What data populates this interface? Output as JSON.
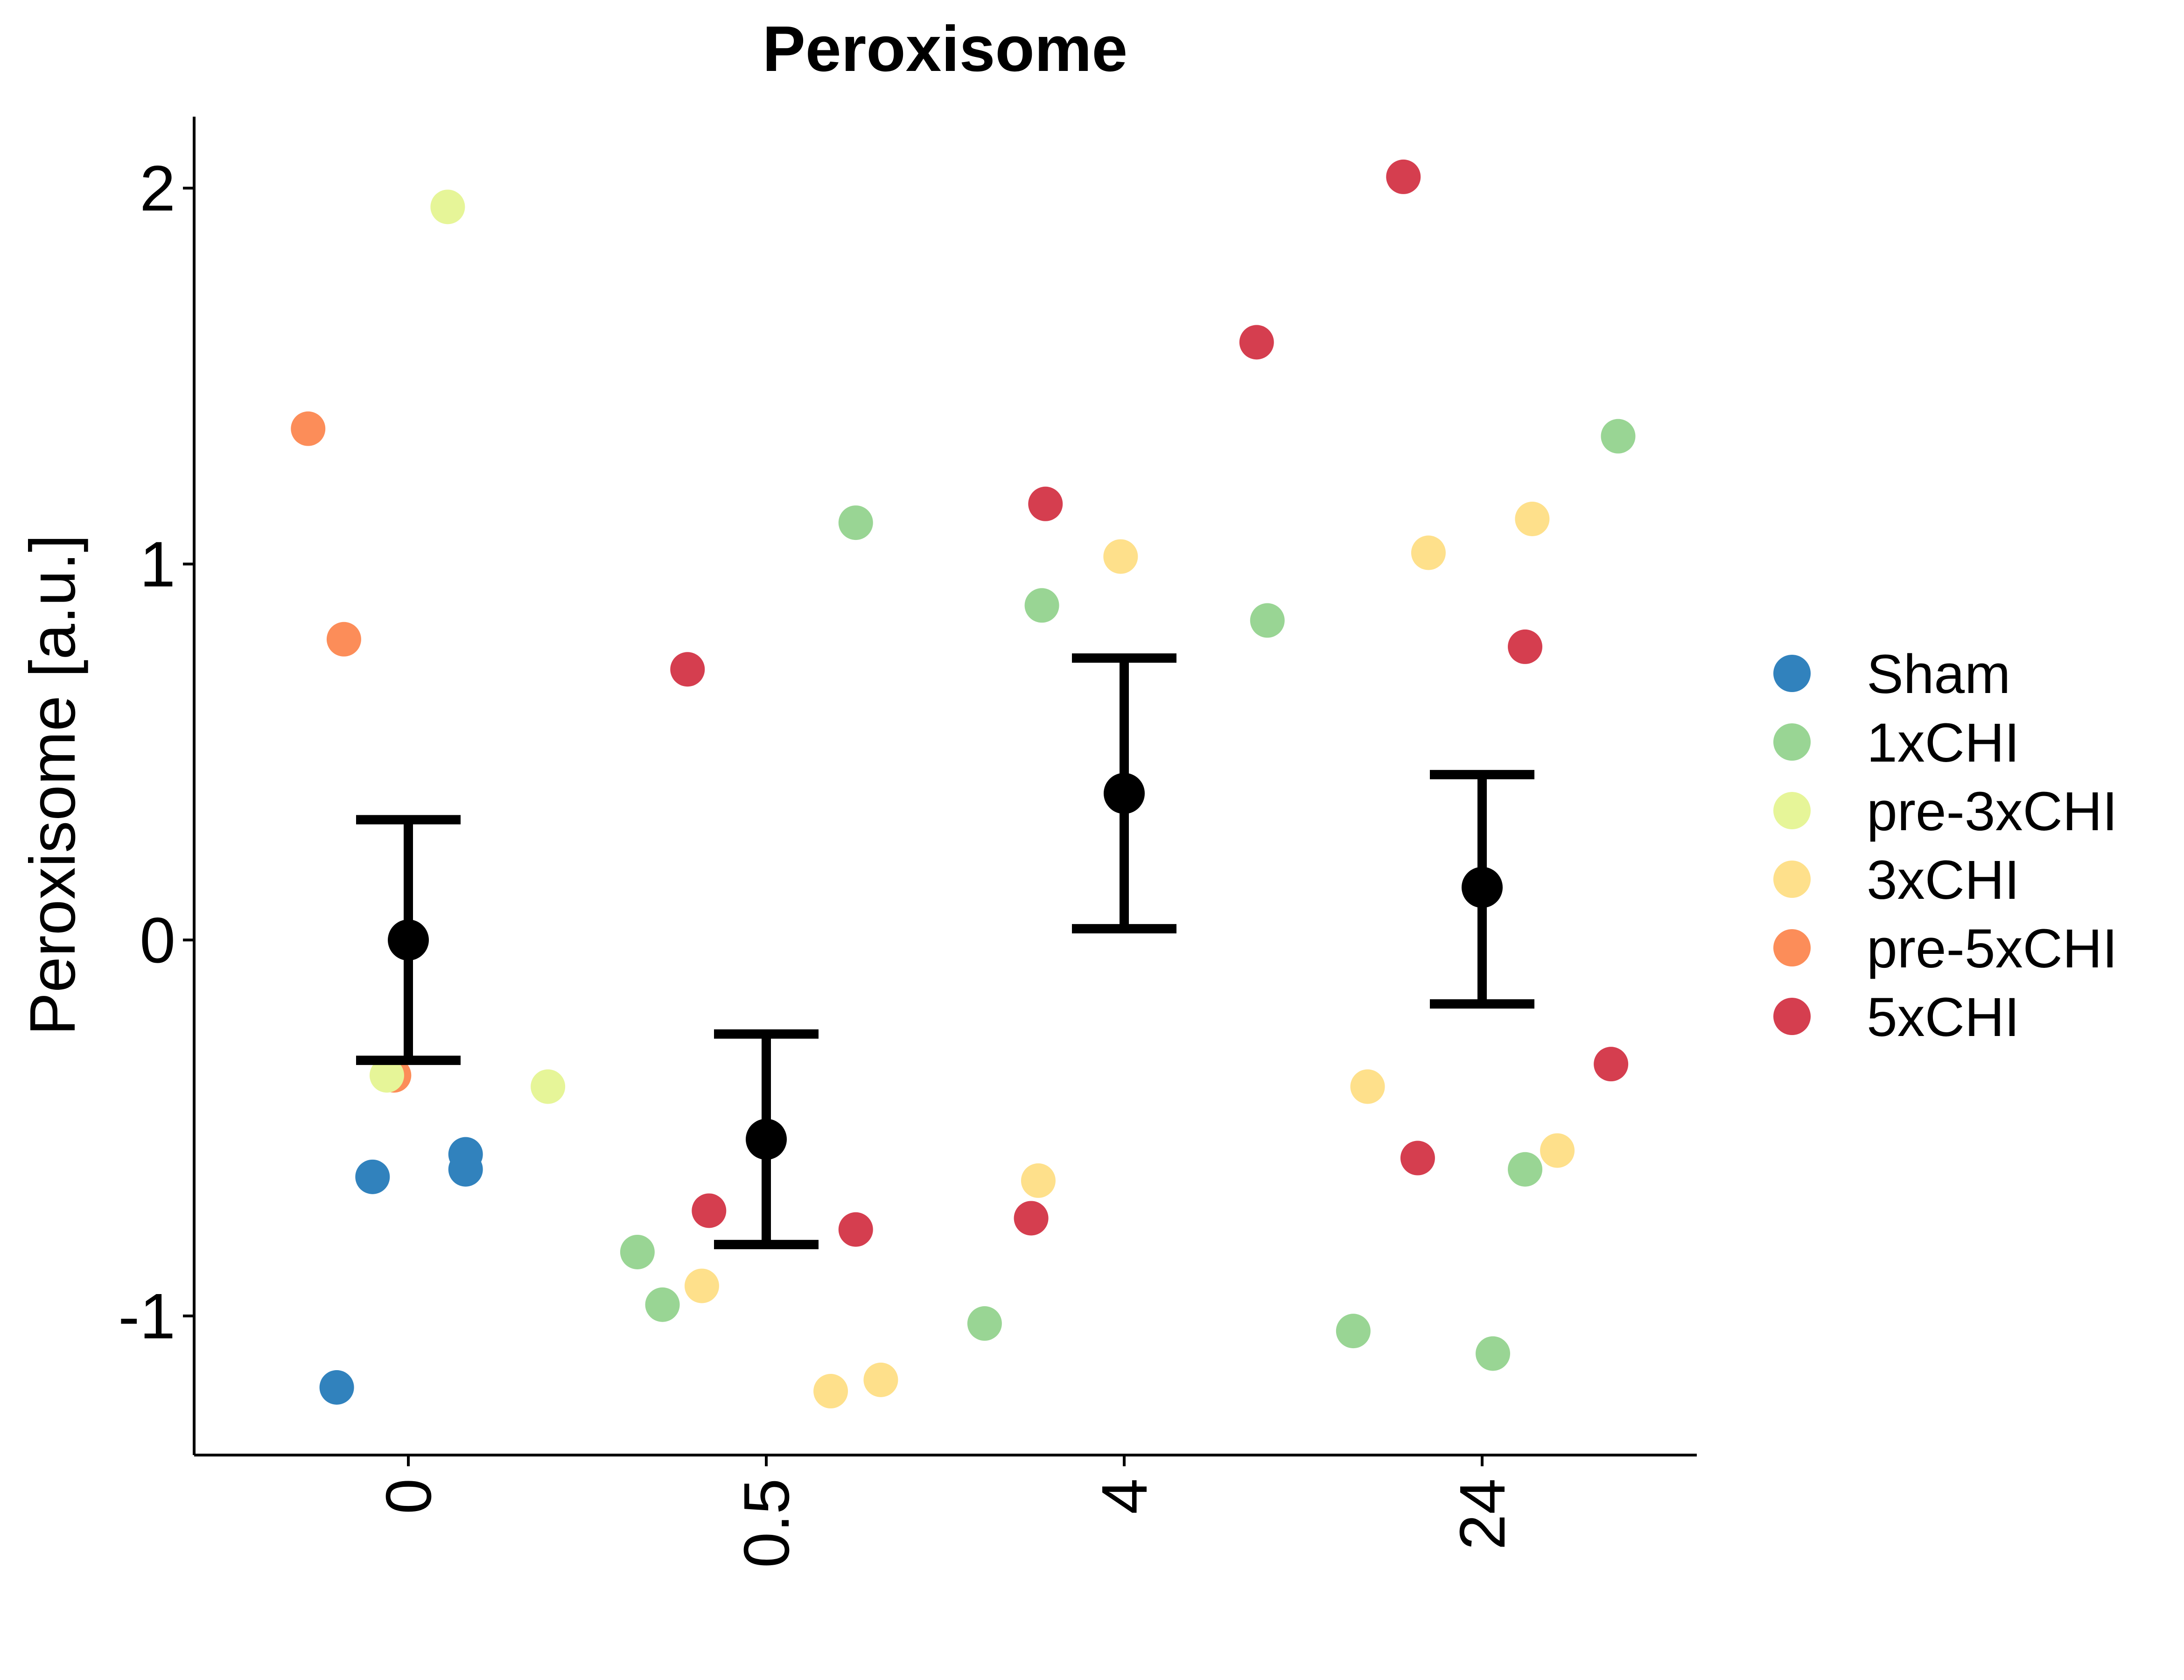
{
  "chart_data": {
    "type": "scatter",
    "title": "Peroxisome",
    "xlabel": "",
    "ylabel": "Peroxisome [a.u.]",
    "x_categories": [
      "0",
      "0.5",
      "4",
      "24"
    ],
    "y_ticks": [
      {
        "value": -1,
        "label": "-1"
      },
      {
        "value": 0,
        "label": "0"
      },
      {
        "value": 1,
        "label": "1"
      },
      {
        "value": 2,
        "label": "2"
      }
    ],
    "ylim": [
      -1.37,
      2.19
    ],
    "legend": {
      "position": "right",
      "entries": [
        {
          "key": "Sham",
          "label": "Sham",
          "color": "#3182bd"
        },
        {
          "key": "1xCHI",
          "label": "1xCHI",
          "color": "#99d594"
        },
        {
          "key": "pre-3xCHI",
          "label": "pre-3xCHI",
          "color": "#e6f598"
        },
        {
          "key": "3xCHI",
          "label": "3xCHI",
          "color": "#fee08b"
        },
        {
          "key": "pre-5xCHI",
          "label": "pre-5xCHI",
          "color": "#fc8d59"
        },
        {
          "key": "5xCHI",
          "label": "5xCHI",
          "color": "#d53e4f"
        }
      ]
    },
    "summary": [
      {
        "category": "0",
        "mean": 0.0,
        "lower": -0.32,
        "upper": 0.32
      },
      {
        "category": "0.5",
        "mean": -0.53,
        "lower": -0.81,
        "upper": -0.25
      },
      {
        "category": "4",
        "mean": 0.39,
        "lower": 0.03,
        "upper": 0.75
      },
      {
        "category": "24",
        "mean": 0.14,
        "lower": -0.17,
        "upper": 0.44
      }
    ],
    "points": [
      {
        "group": "Sham",
        "x": -0.2,
        "y": -1.19
      },
      {
        "group": "Sham",
        "x": -0.1,
        "y": -0.63
      },
      {
        "group": "Sham",
        "x": 0.16,
        "y": -0.57
      },
      {
        "group": "Sham",
        "x": 0.16,
        "y": -0.61
      },
      {
        "group": "pre-5xCHI",
        "x": -0.28,
        "y": 1.36
      },
      {
        "group": "pre-5xCHI",
        "x": -0.18,
        "y": 0.8
      },
      {
        "group": "pre-5xCHI",
        "x": -0.04,
        "y": -0.36
      },
      {
        "group": "pre-3xCHI",
        "x": 0.11,
        "y": 1.95
      },
      {
        "group": "pre-3xCHI",
        "x": -0.06,
        "y": -0.36
      },
      {
        "group": "pre-3xCHI",
        "x": 0.39,
        "y": -0.39
      },
      {
        "group": "1xCHI",
        "x": 0.64,
        "y": -0.83
      },
      {
        "group": "1xCHI",
        "x": 0.71,
        "y": -0.97
      },
      {
        "group": "1xCHI",
        "x": 1.25,
        "y": 1.11
      },
      {
        "group": "1xCHI",
        "x": 1.61,
        "y": -1.02
      },
      {
        "group": "1xCHI",
        "x": 1.77,
        "y": 0.89
      },
      {
        "group": "1xCHI",
        "x": 2.4,
        "y": 0.85
      },
      {
        "group": "1xCHI",
        "x": 2.64,
        "y": -1.04
      },
      {
        "group": "1xCHI",
        "x": 3.03,
        "y": -1.1
      },
      {
        "group": "1xCHI",
        "x": 3.12,
        "y": -0.61
      },
      {
        "group": "1xCHI",
        "x": 3.38,
        "y": 1.34
      },
      {
        "group": "3xCHI",
        "x": 0.82,
        "y": -0.92
      },
      {
        "group": "3xCHI",
        "x": 1.18,
        "y": -1.2
      },
      {
        "group": "3xCHI",
        "x": 1.32,
        "y": -1.17
      },
      {
        "group": "3xCHI",
        "x": 1.76,
        "y": -0.64
      },
      {
        "group": "3xCHI",
        "x": 1.99,
        "y": 1.02
      },
      {
        "group": "3xCHI",
        "x": 2.68,
        "y": -0.39
      },
      {
        "group": "3xCHI",
        "x": 2.85,
        "y": 1.03
      },
      {
        "group": "3xCHI",
        "x": 3.14,
        "y": 1.12
      },
      {
        "group": "3xCHI",
        "x": 3.21,
        "y": -0.56
      },
      {
        "group": "5xCHI",
        "x": 0.78,
        "y": 0.72
      },
      {
        "group": "5xCHI",
        "x": 0.84,
        "y": -0.72
      },
      {
        "group": "5xCHI",
        "x": 1.25,
        "y": -0.77
      },
      {
        "group": "5xCHI",
        "x": 1.74,
        "y": -0.74
      },
      {
        "group": "5xCHI",
        "x": 1.78,
        "y": 1.16
      },
      {
        "group": "5xCHI",
        "x": 2.37,
        "y": 1.59
      },
      {
        "group": "5xCHI",
        "x": 2.78,
        "y": 2.03
      },
      {
        "group": "5xCHI",
        "x": 2.82,
        "y": -0.58
      },
      {
        "group": "5xCHI",
        "x": 3.12,
        "y": 0.78
      },
      {
        "group": "5xCHI",
        "x": 3.36,
        "y": -0.33
      }
    ]
  }
}
